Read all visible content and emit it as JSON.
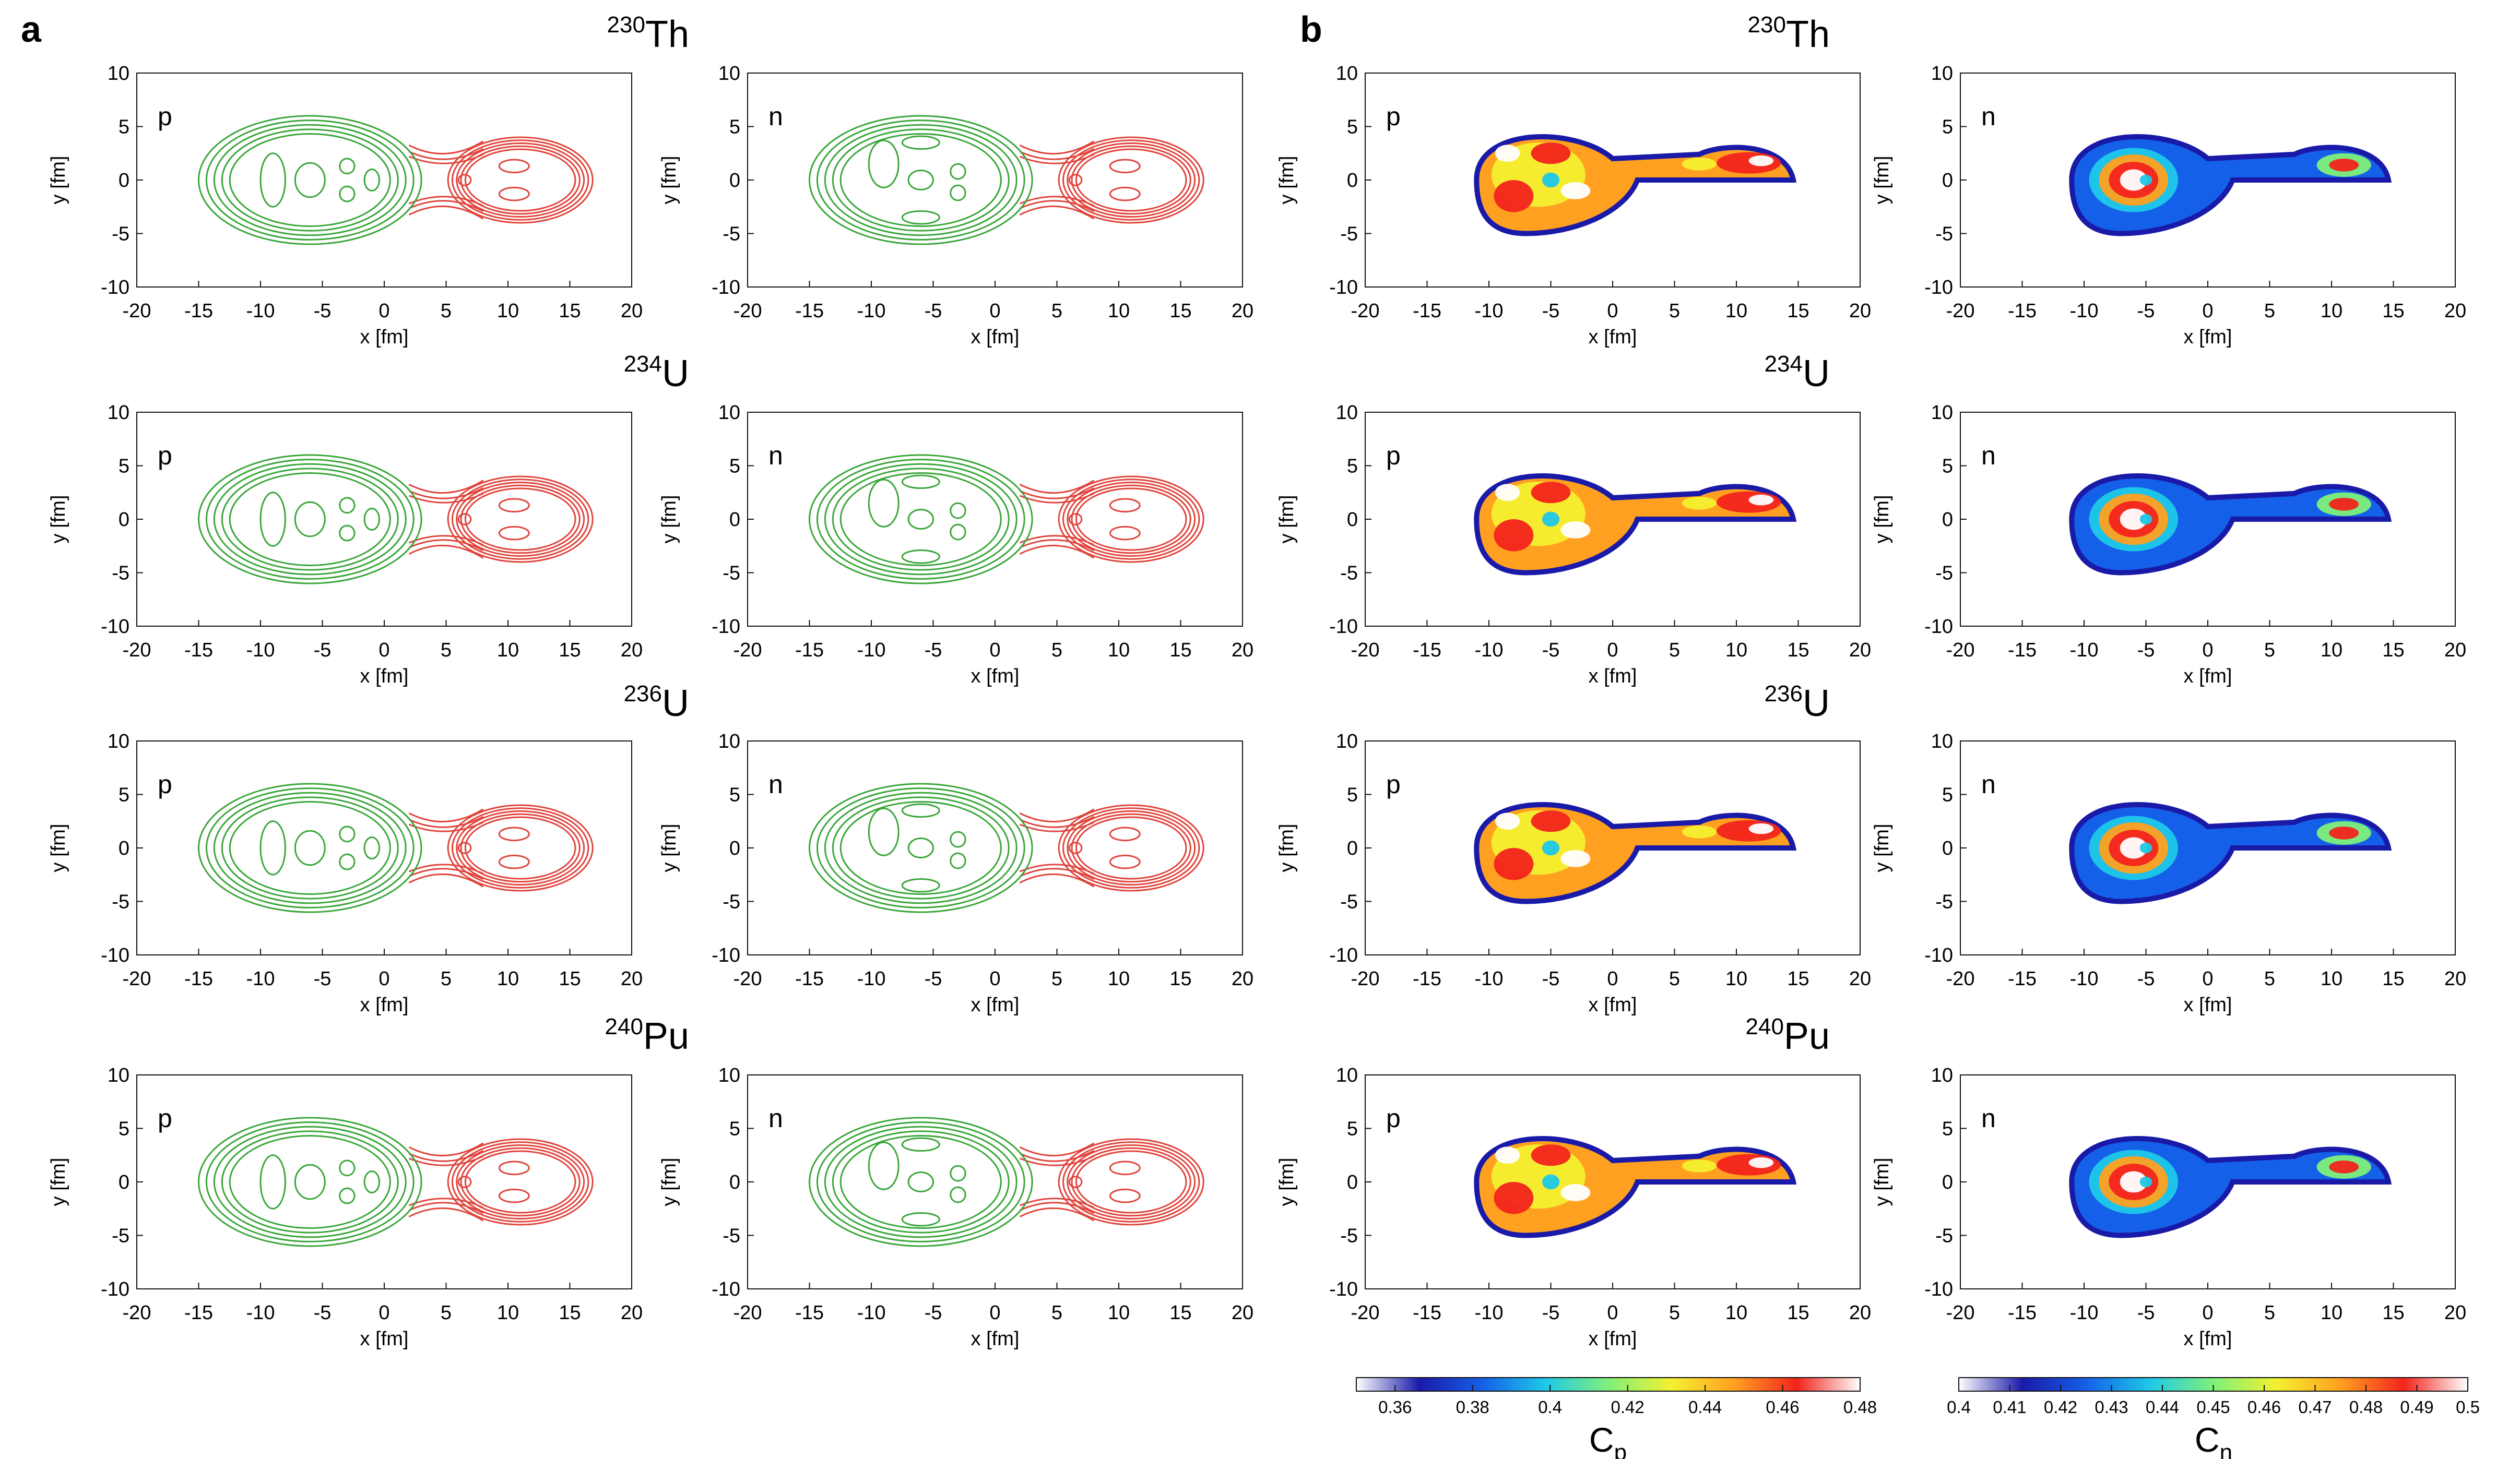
{
  "figure": {
    "panel_labels": [
      "a",
      "b"
    ],
    "rows": [
      {
        "mass": "230",
        "element": "Th"
      },
      {
        "mass": "234",
        "element": "U"
      },
      {
        "mass": "236",
        "element": "U"
      },
      {
        "mass": "240",
        "element": "Pu"
      }
    ],
    "columns": [
      {
        "panel": "a",
        "label": "p",
        "kind": "contour"
      },
      {
        "panel": "a",
        "label": "n",
        "kind": "contour"
      },
      {
        "panel": "b",
        "label": "p",
        "kind": "heatmap"
      },
      {
        "panel": "b",
        "label": "n",
        "kind": "heatmap"
      }
    ],
    "colors": {
      "contour_fragment_light": "#3aa63a",
      "contour_fragment_heavy": "#e0443c",
      "axis": "#111111",
      "background": "#ffffff"
    },
    "colormap": [
      "#ffffff",
      "#1a1aa8",
      "#1560e8",
      "#1ec8e8",
      "#7ef07a",
      "#f4f030",
      "#ffa020",
      "#f2241c",
      "#ffffff"
    ]
  },
  "chart_data": [
    {
      "type": "contour",
      "description_label": "proton/neutron density contours, panel a",
      "xlabel": "x [fm]",
      "ylabel": "y [fm]",
      "xlim": [
        -20,
        20
      ],
      "ylim": [
        -10,
        10
      ],
      "xticks": [
        "-20",
        "-15",
        "-10",
        "-5",
        "0",
        "5",
        "10",
        "15",
        "20"
      ],
      "yticks": [
        "10",
        "5",
        "0",
        "-5",
        "-10"
      ],
      "nuclei": [
        "230Th",
        "234U",
        "236U",
        "240Pu"
      ],
      "subpanels": [
        "p",
        "n"
      ],
      "fragments": {
        "light": {
          "center_x": -6,
          "half_length": 9,
          "half_width": 6
        },
        "heavy": {
          "center_x": 11,
          "half_length": 5,
          "half_width": 4
        }
      },
      "neck_x": 2
    },
    {
      "type": "heatmap",
      "description_label": "localization function, panel b",
      "xlabel": "x [fm]",
      "ylabel": "y [fm]",
      "xlim": [
        -20,
        20
      ],
      "ylim": [
        -10,
        10
      ],
      "xticks": [
        "-20",
        "-15",
        "-10",
        "-5",
        "0",
        "5",
        "10",
        "15",
        "20"
      ],
      "yticks": [
        "10",
        "5",
        "0",
        "-5",
        "-10"
      ],
      "nuclei": [
        "230Th",
        "234U",
        "236U",
        "240Pu"
      ],
      "subpanels": [
        "p",
        "n"
      ],
      "colorbars": [
        {
          "name": "Cp",
          "symbol": "C",
          "subscript": "p",
          "min": 0.35,
          "max": 0.48,
          "ticks": [
            "0.36",
            "0.38",
            "0.4",
            "0.42",
            "0.44",
            "0.46",
            "0.48"
          ],
          "tick_values": [
            0.36,
            0.38,
            0.4,
            0.42,
            0.44,
            0.46,
            0.48
          ]
        },
        {
          "name": "Cn",
          "symbol": "C",
          "subscript": "n",
          "min": 0.4,
          "max": 0.5,
          "ticks": [
            "0.4",
            "0.41",
            "0.42",
            "0.43",
            "0.44",
            "0.45",
            "0.46",
            "0.47",
            "0.48",
            "0.49",
            "0.5"
          ],
          "tick_values": [
            0.4,
            0.41,
            0.42,
            0.43,
            0.44,
            0.45,
            0.46,
            0.47,
            0.48,
            0.49,
            0.5
          ]
        }
      ]
    }
  ]
}
